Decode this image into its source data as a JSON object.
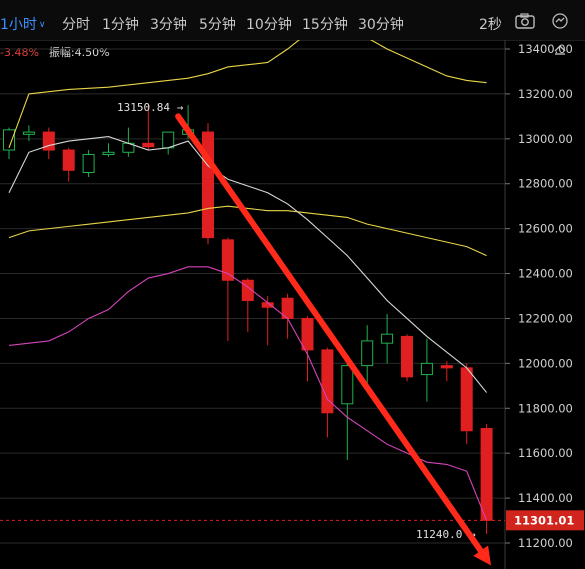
{
  "toolbar": {
    "tabs": [
      {
        "label": "1小时",
        "active": true
      },
      {
        "label": "分时"
      },
      {
        "label": "1分钟"
      },
      {
        "label": "3分钟"
      },
      {
        "label": "5分钟"
      },
      {
        "label": "10分钟"
      },
      {
        "label": "15分钟"
      },
      {
        "label": "30分钟"
      }
    ],
    "refresh_label": "2秒",
    "icons": [
      "screenshot-camera-icon",
      "indicator-tool-icon",
      "collapse-icon"
    ]
  },
  "info": {
    "change": "-3.48%",
    "amplitude_label": "振幅:",
    "amplitude_value": "4.50%"
  },
  "colors": {
    "up": "#21b24b",
    "down": "#e02020",
    "grid": "#2a2a2a",
    "boll_upper": "#e8d547",
    "boll_mid": "#d7d7d7",
    "boll_lower": "#d444b9",
    "trend_arrow": "#ff2a1a",
    "accent": "#3d8fff"
  },
  "chart_data": {
    "type": "candlestick",
    "yticks": [
      11200,
      11400,
      11600,
      11800,
      12000,
      12200,
      12400,
      12600,
      12800,
      13000,
      13200,
      13400
    ],
    "ylim": [
      11100,
      13600
    ],
    "grid": true,
    "candles": [
      {
        "o": 12950,
        "h": 13050,
        "l": 12910,
        "c": 13040
      },
      {
        "o": 13020,
        "h": 13060,
        "l": 12990,
        "c": 13030
      },
      {
        "o": 13030,
        "h": 13050,
        "l": 12910,
        "c": 12950
      },
      {
        "o": 12950,
        "h": 12960,
        "l": 12810,
        "c": 12860
      },
      {
        "o": 12850,
        "h": 12950,
        "l": 12830,
        "c": 12930
      },
      {
        "o": 12930,
        "h": 12980,
        "l": 12920,
        "c": 12940
      },
      {
        "o": 12940,
        "h": 13050,
        "l": 12920,
        "c": 12980
      },
      {
        "o": 12980,
        "h": 13150,
        "l": 12950,
        "c": 12965
      },
      {
        "o": 12960,
        "h": 13030,
        "l": 12930,
        "c": 13030
      },
      {
        "o": 13020,
        "h": 13150,
        "l": 13000,
        "c": 13040
      },
      {
        "o": 13030,
        "h": 13070,
        "l": 12530,
        "c": 12560
      },
      {
        "o": 12550,
        "h": 12560,
        "l": 12100,
        "c": 12370
      },
      {
        "o": 12370,
        "h": 12380,
        "l": 12140,
        "c": 12280
      },
      {
        "o": 12270,
        "h": 12300,
        "l": 12080,
        "c": 12250
      },
      {
        "o": 12290,
        "h": 12310,
        "l": 12110,
        "c": 12200
      },
      {
        "o": 12200,
        "h": 12210,
        "l": 11920,
        "c": 12060
      },
      {
        "o": 12060,
        "h": 12070,
        "l": 11670,
        "c": 11780
      },
      {
        "o": 11820,
        "h": 12010,
        "l": 11570,
        "c": 11990
      },
      {
        "o": 11990,
        "h": 12170,
        "l": 11900,
        "c": 12100
      },
      {
        "o": 12090,
        "h": 12220,
        "l": 12000,
        "c": 12130
      },
      {
        "o": 12120,
        "h": 12130,
        "l": 11920,
        "c": 11940
      },
      {
        "o": 11950,
        "h": 12110,
        "l": 11830,
        "c": 12000
      },
      {
        "o": 11990,
        "h": 12010,
        "l": 11920,
        "c": 11980
      },
      {
        "o": 11980,
        "h": 12000,
        "l": 11640,
        "c": 11700
      },
      {
        "o": 11710,
        "h": 11730,
        "l": 11240,
        "c": 11301
      }
    ],
    "boll_upper": [
      12960,
      13200,
      13210,
      13220,
      13225,
      13230,
      13240,
      13250,
      13260,
      13270,
      13290,
      13320,
      13330,
      13340,
      13400,
      13470,
      13490,
      13500,
      13450,
      13400,
      13360,
      13320,
      13280,
      13260,
      13250
    ],
    "boll_mid": [
      12560,
      12590,
      12600,
      12610,
      12620,
      12630,
      12640,
      12650,
      12660,
      12670,
      12690,
      12700,
      12690,
      12680,
      12680,
      12670,
      12660,
      12650,
      12620,
      12600,
      12580,
      12560,
      12540,
      12520,
      12480
    ],
    "boll_lower": [
      12080,
      12090,
      12100,
      12140,
      12200,
      12240,
      12320,
      12380,
      12400,
      12430,
      12430,
      12400,
      12340,
      12270,
      12200,
      12040,
      11840,
      11760,
      11700,
      11640,
      11600,
      11560,
      11550,
      11520,
      11300
    ],
    "ma": [
      12760,
      12940,
      12970,
      12990,
      13000,
      13010,
      12980,
      12950,
      12960,
      12990,
      12880,
      12820,
      12790,
      12760,
      12710,
      12640,
      12560,
      12480,
      12380,
      12280,
      12200,
      12120,
      12050,
      11980,
      11870
    ],
    "annotations": {
      "high": {
        "value": 13150.84,
        "label": "13150.84 →"
      },
      "low": {
        "value": 11240.0,
        "label": "11240.0 →"
      }
    },
    "last_price": "11301.01",
    "trend_arrow": {
      "from": 13100,
      "to": 11100
    }
  }
}
